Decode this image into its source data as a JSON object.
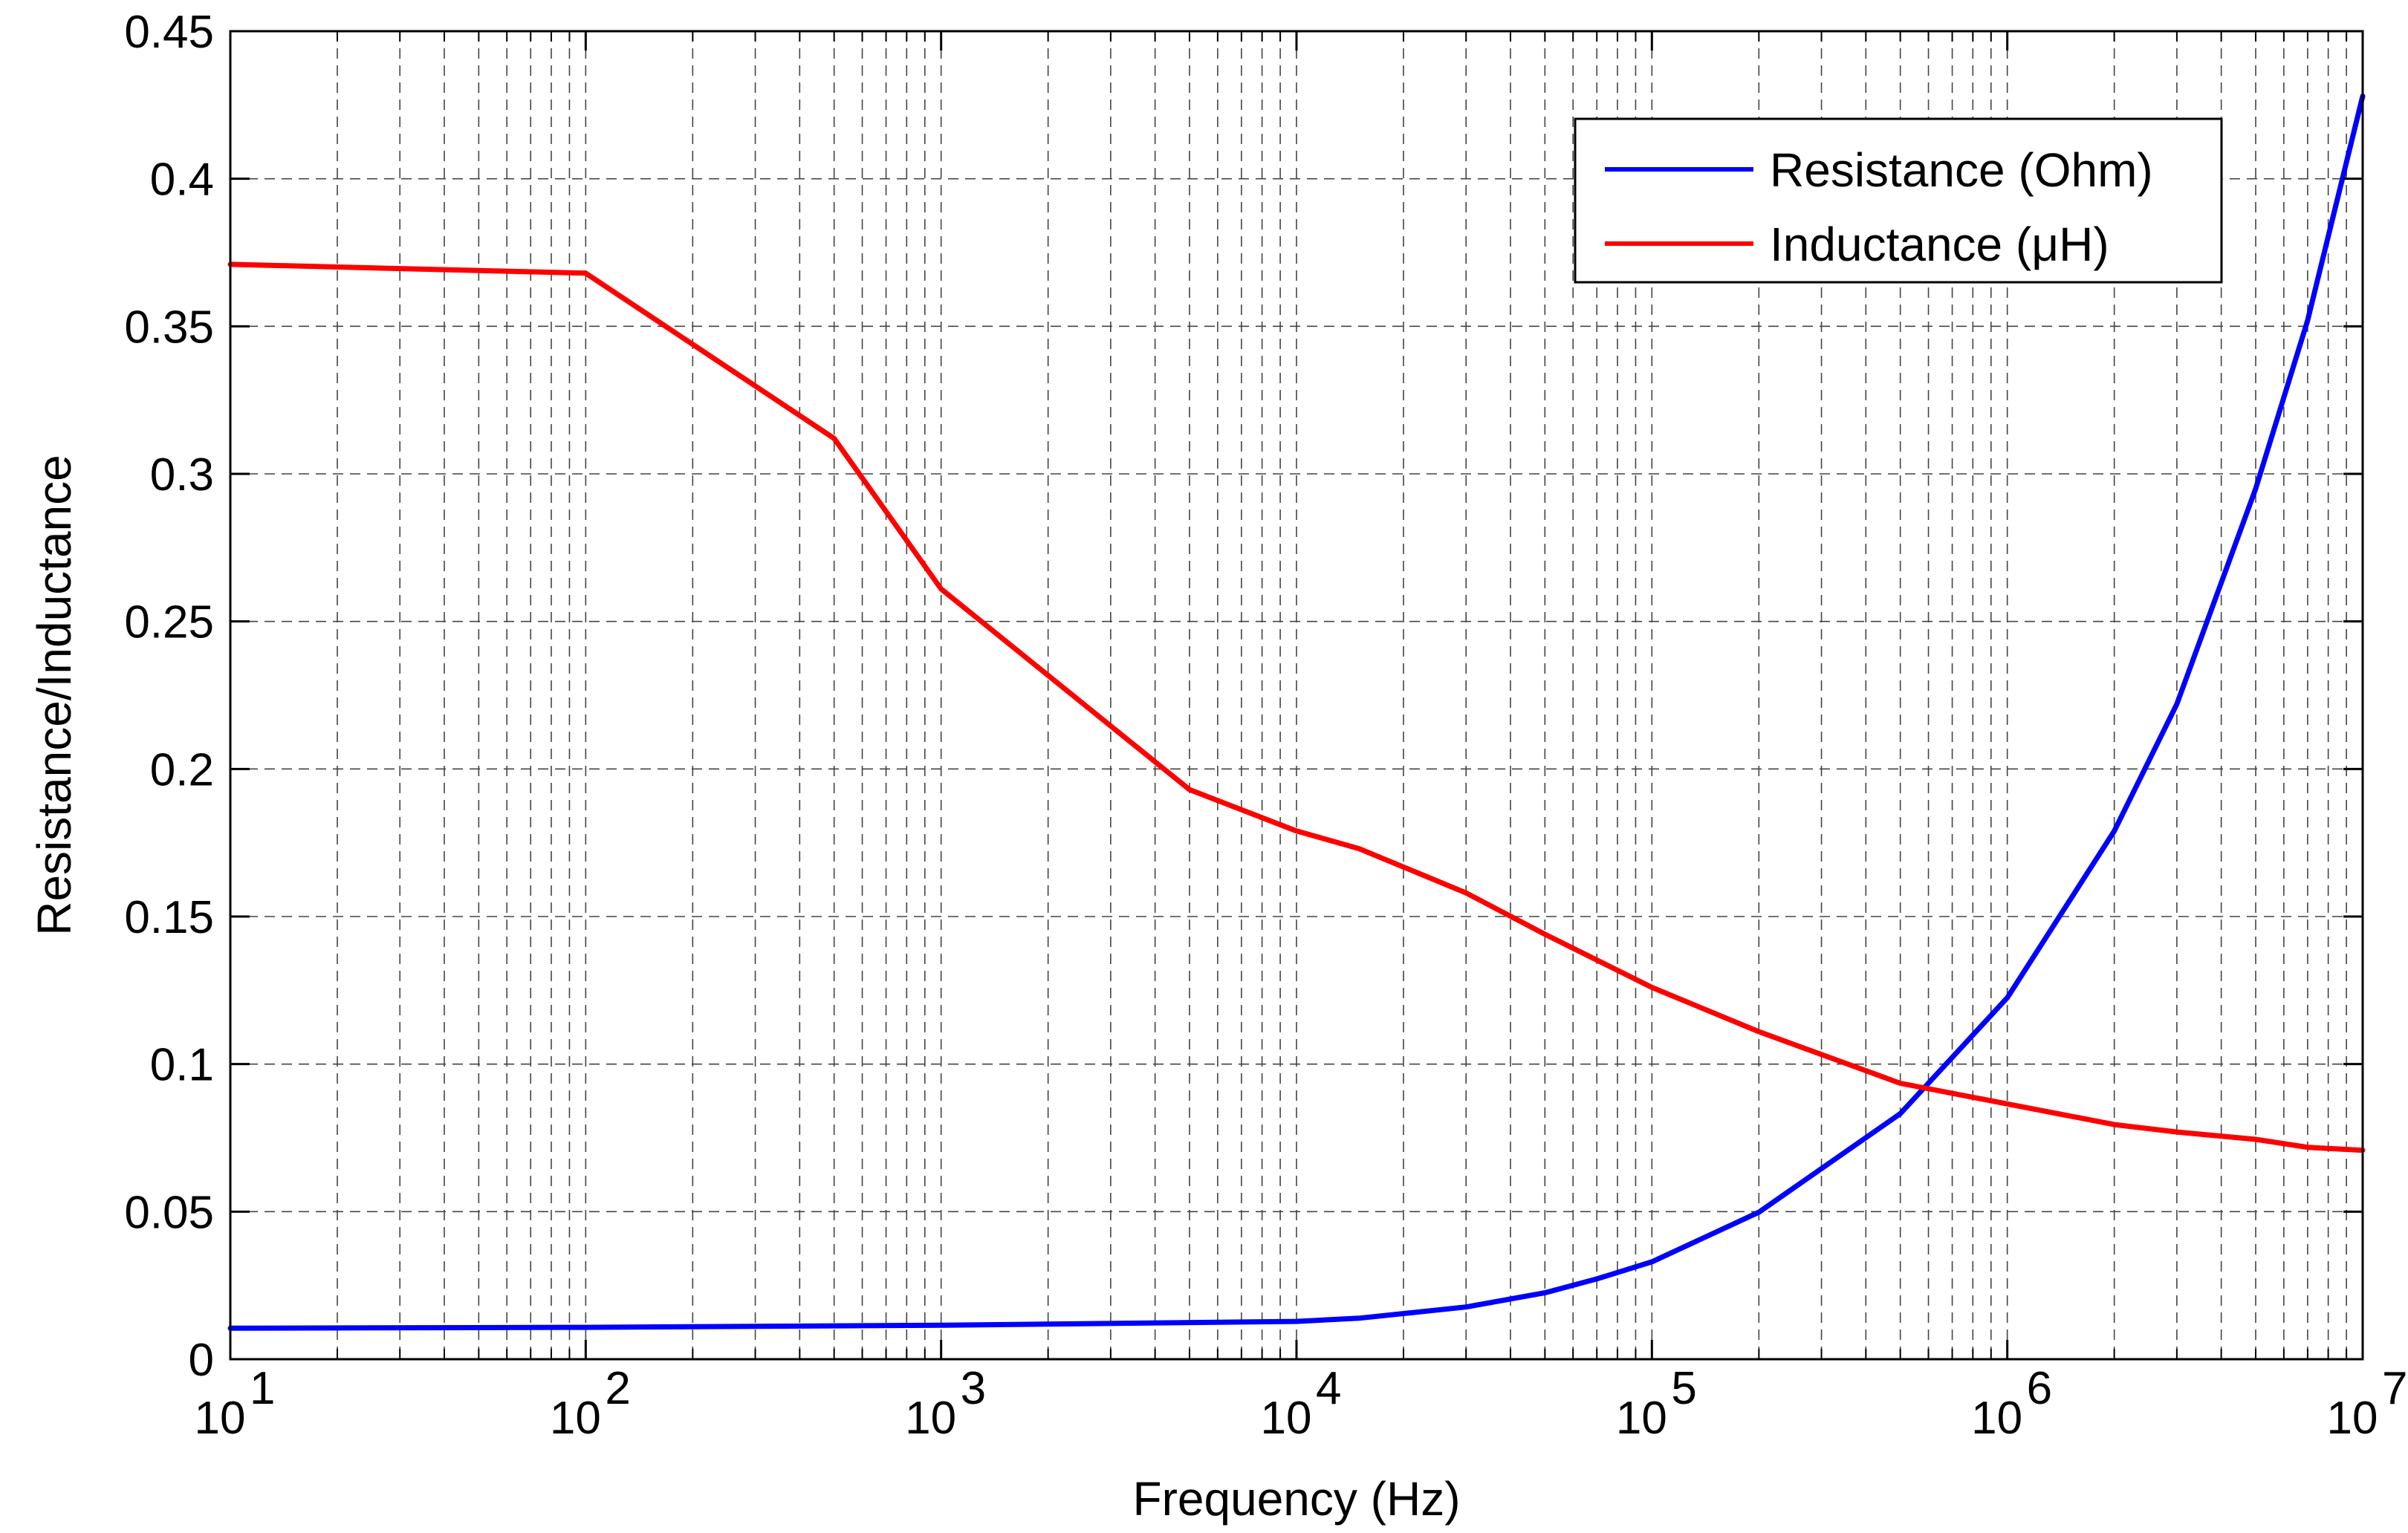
{
  "chart_data": {
    "type": "line",
    "title": "",
    "xlabel": "Frequency (Hz)",
    "ylabel": "Resistance/Inductance",
    "xscale": "log",
    "xlim": [
      10,
      10000000
    ],
    "ylim": [
      0,
      0.45
    ],
    "grid": true,
    "grid_style": "dashed",
    "legend_position": "top-right",
    "x_ticks": [
      {
        "value": 10,
        "base": "10",
        "exp": "1"
      },
      {
        "value": 100,
        "base": "10",
        "exp": "2"
      },
      {
        "value": 1000,
        "base": "10",
        "exp": "3"
      },
      {
        "value": 10000,
        "base": "10",
        "exp": "4"
      },
      {
        "value": 100000,
        "base": "10",
        "exp": "5"
      },
      {
        "value": 1000000,
        "base": "10",
        "exp": "6"
      },
      {
        "value": 10000000,
        "base": "10",
        "exp": "7"
      }
    ],
    "y_ticks": [
      {
        "value": 0,
        "label": "0"
      },
      {
        "value": 0.05,
        "label": "0.05"
      },
      {
        "value": 0.1,
        "label": "0.1"
      },
      {
        "value": 0.15,
        "label": "0.15"
      },
      {
        "value": 0.2,
        "label": "0.2"
      },
      {
        "value": 0.25,
        "label": "0.25"
      },
      {
        "value": 0.3,
        "label": "0.3"
      },
      {
        "value": 0.35,
        "label": "0.35"
      },
      {
        "value": 0.4,
        "label": "0.4"
      },
      {
        "value": 0.45,
        "label": "0.45"
      }
    ],
    "series": [
      {
        "name": "Resistance (Ohm)",
        "color": "#0000ff",
        "x": [
          10,
          100,
          1000,
          10000,
          15000,
          30000,
          50000,
          70000,
          100000,
          200000,
          500000,
          1000000,
          2000000,
          3000000,
          5000000,
          7000000,
          10000000
        ],
        "y": [
          0.0105,
          0.0108,
          0.0115,
          0.0128,
          0.0139,
          0.0177,
          0.0225,
          0.0272,
          0.033,
          0.0498,
          0.0832,
          0.1225,
          0.179,
          0.222,
          0.295,
          0.352,
          0.428
        ]
      },
      {
        "name": "Inductance (μH)",
        "color": "#ff0000",
        "x": [
          10,
          100,
          500,
          1000,
          5000,
          10000,
          15000,
          30000,
          50000,
          100000,
          200000,
          500000,
          1000000,
          2000000,
          3000000,
          5000000,
          7000000,
          10000000
        ],
        "y": [
          0.371,
          0.368,
          0.312,
          0.261,
          0.193,
          0.179,
          0.173,
          0.158,
          0.144,
          0.126,
          0.111,
          0.0935,
          0.0865,
          0.0795,
          0.077,
          0.0745,
          0.0718,
          0.0708
        ]
      }
    ]
  }
}
